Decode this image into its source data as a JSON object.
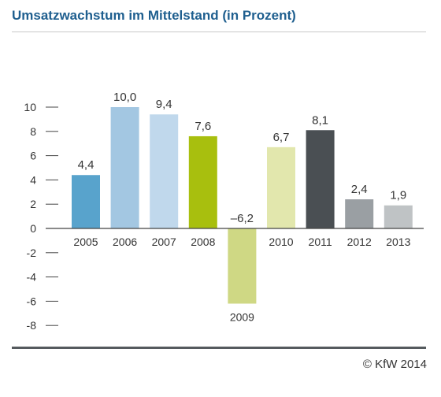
{
  "chart_data": {
    "type": "bar",
    "title": "Umsatzwachstum im Mittelstand (in Prozent)",
    "xlabel": "",
    "ylabel": "",
    "ylim": [
      -8,
      10
    ],
    "y_ticks": [
      10,
      8,
      6,
      4,
      2,
      0,
      -2,
      -4,
      -6,
      -8
    ],
    "grid": false,
    "legend": "none",
    "categories": [
      "2005",
      "2006",
      "2007",
      "2008",
      "2009",
      "2010",
      "2011",
      "2012",
      "2013"
    ],
    "values": [
      4.4,
      10.0,
      9.4,
      7.6,
      -6.2,
      6.7,
      8.1,
      2.4,
      1.9
    ],
    "value_labels": [
      "4,4",
      "10,0",
      "9,4",
      "7,6",
      "–6,2",
      "6,7",
      "8,1",
      "2,4",
      "1,9"
    ],
    "colors": [
      "#58a3cc",
      "#a3c7e2",
      "#c0d8ec",
      "#a8bf0e",
      "#cfd884",
      "#e2e7ad",
      "#4a4f53",
      "#9a9fa3",
      "#bfc3c5"
    ]
  },
  "footer": {
    "copyright": "© KfW 2014"
  }
}
